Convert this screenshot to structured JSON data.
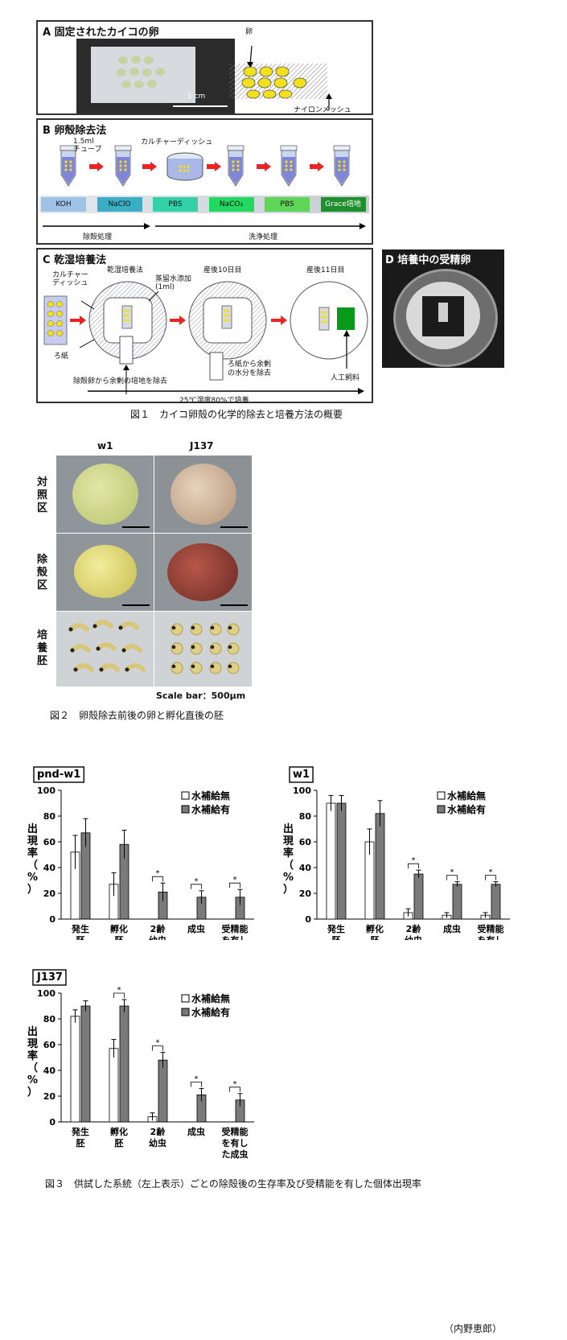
{
  "fig1": {
    "panelA": {
      "title": "A 固定されたカイコの卵",
      "egg_label": "卵",
      "scale": "1 cm",
      "mesh_label": "ナイロンメッシュ"
    },
    "panelB": {
      "title": "B 卵殻除去法",
      "tube_label": "1.5ml\nチューブ",
      "dish_label": "カルチャーディッシュ",
      "steps": [
        "KOH",
        "NaClO",
        "PBS",
        "NaCO₃",
        "PBS",
        "Grace培地"
      ],
      "step_colors": [
        "#9fc3e6",
        "#3aaec4",
        "#33d1a8",
        "#22d95f",
        "#5fd657",
        "#1f8f2c"
      ],
      "phase1": "除殻処理",
      "phase2": "洗浄処理"
    },
    "panelC": {
      "title": "C 乾湿培養法",
      "col1": "乾湿培養法",
      "col2": "産後10日目",
      "col3": "産後11日目",
      "dish": "カルチャー\nディッシュ",
      "water": "蒸留水添加\n(1ml)",
      "paper": "ろ紙",
      "remove1": "除殻卵から余剰の培地を除去",
      "remove2": "ろ紙から余剰\nの水分を除去",
      "feed": "人工飼料",
      "condition": "25℃湿度80%で培養"
    },
    "panelD": {
      "title": "D 培養中の受精卵"
    },
    "caption": "図１　カイコ卵殻の化学的除去と培養方法の概要"
  },
  "fig2": {
    "col_labels": [
      "w1",
      "J137"
    ],
    "row_labels": [
      "対\n照\n区",
      "除\n殻\n区",
      "培\n養\n胚"
    ],
    "scale": "Scale bar：500μm",
    "caption": "図２　卵殻除去前後の卵と孵化直後の胚"
  },
  "fig3": {
    "legend_off": "水補給無",
    "legend_on": "水補給有",
    "ylabel": "出\n現\n率\n（\n%\n）",
    "yticks": [
      "0",
      "20",
      "40",
      "60",
      "80",
      "100"
    ],
    "categories": [
      "発生\n胚",
      "孵化\n胚",
      "2齢\n幼虫",
      "成虫",
      "受精能\nを有し\nた成虫"
    ],
    "caption": "図３　供試した系統（左上表示）ごとの除殻後の生存率及び受精能を有した個体出現率",
    "author": "（内野恵郎）"
  },
  "chart_data": [
    {
      "type": "bar",
      "title": "pnd-w1",
      "categories": [
        "発生胚",
        "孵化胚",
        "2齢幼虫",
        "成虫",
        "受精能を有した成虫"
      ],
      "ylim": [
        0,
        100
      ],
      "series": [
        {
          "name": "水補給無",
          "values": [
            52,
            27,
            0,
            0,
            0
          ],
          "errors": [
            13,
            9,
            0,
            0,
            0
          ]
        },
        {
          "name": "水補給有",
          "values": [
            67,
            58,
            21,
            17,
            17
          ],
          "errors": [
            11,
            11,
            7,
            5,
            6
          ]
        }
      ],
      "significance": [
        false,
        false,
        true,
        true,
        true
      ]
    },
    {
      "type": "bar",
      "title": "w1",
      "categories": [
        "発生胚",
        "孵化胚",
        "2齢幼虫",
        "成虫",
        "受精能を有した成虫"
      ],
      "ylim": [
        0,
        100
      ],
      "series": [
        {
          "name": "水補給無",
          "values": [
            90,
            60,
            5,
            3,
            3
          ],
          "errors": [
            6,
            10,
            3,
            2,
            2
          ]
        },
        {
          "name": "水補給有",
          "values": [
            90,
            82,
            35,
            27,
            27
          ],
          "errors": [
            6,
            10,
            3,
            2,
            2
          ]
        }
      ],
      "significance": [
        false,
        false,
        true,
        true,
        true
      ]
    },
    {
      "type": "bar",
      "title": "J137",
      "categories": [
        "発生胚",
        "孵化胚",
        "2齢幼虫",
        "成虫",
        "受精能を有した成虫"
      ],
      "ylim": [
        0,
        100
      ],
      "series": [
        {
          "name": "水補給無",
          "values": [
            82,
            57,
            4,
            0,
            0
          ],
          "errors": [
            5,
            7,
            3,
            0,
            0
          ]
        },
        {
          "name": "水補給有",
          "values": [
            90,
            90,
            48,
            21,
            17
          ],
          "errors": [
            4,
            5,
            6,
            5,
            5
          ]
        }
      ],
      "significance": [
        false,
        true,
        true,
        true,
        true
      ]
    }
  ]
}
